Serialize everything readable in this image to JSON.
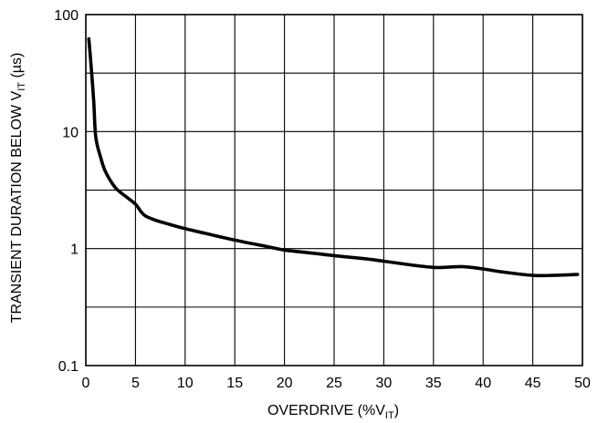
{
  "chart_data": {
    "type": "line",
    "title": "",
    "xlabel": {
      "main": "OVERDRIVE (%V",
      "sub": "IT",
      "end": ")"
    },
    "ylabel": {
      "main": "TRANSIENT DURATION BELOW V",
      "sub": "IT",
      "end": " (µs)"
    },
    "xlim": [
      0,
      50
    ],
    "ylim": [
      0.1,
      100
    ],
    "yscale": "log",
    "grid": true,
    "x_ticks": [
      {
        "v": 0,
        "label": "0"
      },
      {
        "v": 5,
        "label": "5"
      },
      {
        "v": 10,
        "label": "10"
      },
      {
        "v": 15,
        "label": "15"
      },
      {
        "v": 20,
        "label": "20"
      },
      {
        "v": 25,
        "label": "25"
      },
      {
        "v": 30,
        "label": "30"
      },
      {
        "v": 35,
        "label": "35"
      },
      {
        "v": 40,
        "label": "40"
      },
      {
        "v": 45,
        "label": "45"
      },
      {
        "v": 50,
        "label": "50"
      }
    ],
    "y_ticks": [
      {
        "v": 0.1,
        "label": "0.1"
      },
      {
        "v": 1,
        "label": "1"
      },
      {
        "v": 10,
        "label": "10"
      },
      {
        "v": 100,
        "label": "100"
      }
    ],
    "y_grid_values": [
      0.1,
      0.316,
      1,
      3.16,
      10,
      31.6,
      100
    ],
    "series": [
      {
        "x": [
          0.3,
          0.5,
          0.8,
          1.0,
          1.5,
          2.0,
          3.0,
          4.0,
          5.0,
          5.5,
          6.0,
          7.0,
          8.0,
          10.0,
          12.0,
          15.0,
          18.0,
          20.0,
          22.0,
          25.0,
          28.0,
          30.0,
          33.0,
          35.0,
          36.0,
          38.0,
          40.0,
          42.0,
          45.0,
          47.0,
          49.5
        ],
        "y": [
          62,
          40,
          18,
          9.0,
          6.0,
          4.5,
          3.3,
          2.8,
          2.4,
          2.1,
          1.9,
          1.75,
          1.65,
          1.48,
          1.35,
          1.18,
          1.05,
          0.97,
          0.93,
          0.87,
          0.82,
          0.78,
          0.72,
          0.69,
          0.69,
          0.7,
          0.67,
          0.63,
          0.59,
          0.59,
          0.6
        ]
      }
    ]
  }
}
